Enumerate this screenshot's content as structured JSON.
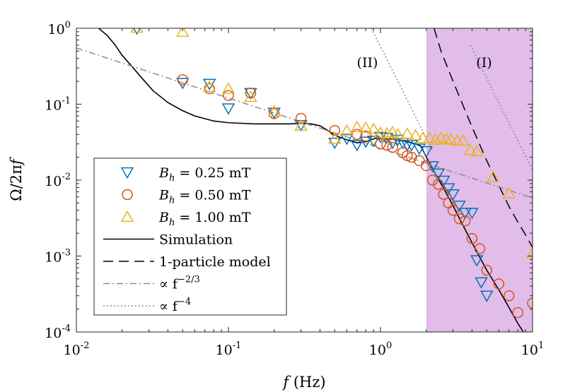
{
  "chart_data": {
    "type": "scatter",
    "xscale": "log",
    "yscale": "log",
    "xlim": [
      0.01,
      10
    ],
    "ylim": [
      0.0001,
      1
    ],
    "xlabel": "f (Hz)",
    "ylabel": "Ω/2πf",
    "x_ticks": [
      {
        "value": 0.01,
        "base": "10",
        "exp": "-2"
      },
      {
        "value": 0.1,
        "base": "10",
        "exp": "-1"
      },
      {
        "value": 1,
        "base": "10",
        "exp": "0"
      },
      {
        "value": 10,
        "base": "10",
        "exp": "1"
      }
    ],
    "y_ticks": [
      {
        "value": 1,
        "base": "10",
        "exp": "0"
      },
      {
        "value": 0.1,
        "base": "10",
        "exp": "-1"
      },
      {
        "value": 0.01,
        "base": "10",
        "exp": "-2"
      },
      {
        "value": 0.001,
        "base": "10",
        "exp": "-3"
      },
      {
        "value": 0.0001,
        "base": "10",
        "exp": "-4"
      }
    ],
    "shaded_region": {
      "x_from": 2,
      "x_to": 10,
      "color": "#e2bde9"
    },
    "region_labels": [
      {
        "text": "(II)",
        "x": 0.82,
        "y": 0.35
      },
      {
        "text": "(I)",
        "x": 4.8,
        "y": 0.35
      }
    ],
    "series": [
      {
        "name": "B_h = 0.25 mT",
        "label_main": "B",
        "label_sub": "h",
        "label_rest": " = 0.25 mT",
        "marker": "triangle-down",
        "color": "#0072bd",
        "points": [
          [
            0.025,
            0.99
          ],
          [
            0.05,
            0.19
          ],
          [
            0.075,
            0.185
          ],
          [
            0.1,
            0.088
          ],
          [
            0.14,
            0.14
          ],
          [
            0.2,
            0.077
          ],
          [
            0.3,
            0.053
          ],
          [
            0.5,
            0.031
          ],
          [
            0.6,
            0.035
          ],
          [
            0.7,
            0.029
          ],
          [
            0.8,
            0.032
          ],
          [
            0.9,
            0.033
          ],
          [
            1.0,
            0.037
          ],
          [
            1.1,
            0.036
          ],
          [
            1.2,
            0.031
          ],
          [
            1.3,
            0.034
          ],
          [
            1.4,
            0.031
          ],
          [
            1.5,
            0.029
          ],
          [
            1.6,
            0.029
          ],
          [
            1.8,
            0.026
          ],
          [
            2.0,
            0.024
          ],
          [
            2.2,
            0.0152
          ],
          [
            2.4,
            0.0122
          ],
          [
            2.6,
            0.0098
          ],
          [
            2.8,
            0.0078
          ],
          [
            3.0,
            0.0065
          ],
          [
            3.3,
            0.0046
          ],
          [
            3.6,
            0.0037
          ],
          [
            4.0,
            0.0037
          ],
          [
            4.3,
            0.00088
          ],
          [
            4.6,
            0.00045
          ],
          [
            5.0,
            0.0003
          ]
        ]
      },
      {
        "name": "B_h = 0.50 mT",
        "label_main": "B",
        "label_sub": "h",
        "label_rest": " = 0.50 mT",
        "marker": "circle",
        "color": "#d95319",
        "points": [
          [
            0.05,
            0.21
          ],
          [
            0.075,
            0.16
          ],
          [
            0.1,
            0.13
          ],
          [
            0.14,
            0.14
          ],
          [
            0.2,
            0.075
          ],
          [
            0.3,
            0.065
          ],
          [
            0.5,
            0.045
          ],
          [
            0.7,
            0.04
          ],
          [
            0.8,
            0.038
          ],
          [
            1.0,
            0.03
          ],
          [
            1.1,
            0.029
          ],
          [
            1.2,
            0.027
          ],
          [
            1.4,
            0.023
          ],
          [
            1.5,
            0.021
          ],
          [
            1.6,
            0.02
          ],
          [
            1.8,
            0.018
          ],
          [
            2.0,
            0.0155
          ],
          [
            2.2,
            0.01
          ],
          [
            2.4,
            0.0088
          ],
          [
            2.6,
            0.0065
          ],
          [
            2.8,
            0.005
          ],
          [
            3.0,
            0.004
          ],
          [
            3.3,
            0.0031
          ],
          [
            3.6,
            0.0029
          ],
          [
            4.0,
            0.0017
          ],
          [
            4.5,
            0.00125
          ],
          [
            5.0,
            0.00065
          ],
          [
            6.0,
            0.00043
          ],
          [
            7.0,
            0.0003
          ],
          [
            8.0,
            0.00018
          ],
          [
            10.0,
            0.00024
          ]
        ]
      },
      {
        "name": "B_h = 1.00 mT",
        "label_main": "B",
        "label_sub": "h",
        "label_rest": " = 1.00 mT",
        "marker": "triangle-up",
        "color": "#edb120",
        "points": [
          [
            0.025,
            1.02
          ],
          [
            0.05,
            0.9
          ],
          [
            0.075,
            0.17
          ],
          [
            0.1,
            0.16
          ],
          [
            0.14,
            0.125
          ],
          [
            0.2,
            0.08
          ],
          [
            0.3,
            0.052
          ],
          [
            0.5,
            0.035
          ],
          [
            0.6,
            0.045
          ],
          [
            0.7,
            0.05
          ],
          [
            0.8,
            0.049
          ],
          [
            0.9,
            0.047
          ],
          [
            1.0,
            0.042
          ],
          [
            1.1,
            0.041
          ],
          [
            1.2,
            0.043
          ],
          [
            1.3,
            0.04
          ],
          [
            1.5,
            0.041
          ],
          [
            1.7,
            0.039
          ],
          [
            1.9,
            0.036
          ],
          [
            2.1,
            0.036
          ],
          [
            2.3,
            0.034
          ],
          [
            2.5,
            0.036
          ],
          [
            2.7,
            0.035
          ],
          [
            2.9,
            0.034
          ],
          [
            3.2,
            0.033
          ],
          [
            3.5,
            0.033
          ],
          [
            3.9,
            0.025
          ],
          [
            4.3,
            0.024
          ],
          [
            5.5,
            0.011
          ],
          [
            7.0,
            0.0067
          ],
          [
            10.0,
            0.0011
          ]
        ]
      }
    ],
    "lines": [
      {
        "name": "Simulation",
        "style": "solid",
        "color": "#000000",
        "points": [
          [
            0.014,
            1.0
          ],
          [
            0.016,
            0.8
          ],
          [
            0.018,
            0.6
          ],
          [
            0.02,
            0.44
          ],
          [
            0.023,
            0.32
          ],
          [
            0.027,
            0.22
          ],
          [
            0.032,
            0.15
          ],
          [
            0.04,
            0.105
          ],
          [
            0.05,
            0.082
          ],
          [
            0.06,
            0.07
          ],
          [
            0.08,
            0.06
          ],
          [
            0.1,
            0.057
          ],
          [
            0.15,
            0.055
          ],
          [
            0.2,
            0.055
          ],
          [
            0.25,
            0.055
          ],
          [
            0.3,
            0.056
          ],
          [
            0.35,
            0.055
          ],
          [
            0.4,
            0.052
          ],
          [
            0.45,
            0.045
          ],
          [
            0.5,
            0.039
          ],
          [
            0.6,
            0.034
          ],
          [
            0.7,
            0.031
          ],
          [
            0.8,
            0.032
          ],
          [
            0.9,
            0.035
          ],
          [
            1.0,
            0.036
          ],
          [
            1.1,
            0.035
          ],
          [
            1.3,
            0.034
          ],
          [
            1.5,
            0.032
          ],
          [
            1.7,
            0.03
          ],
          [
            1.85,
            0.028
          ],
          [
            2.0,
            0.02
          ],
          [
            2.1,
            0.017
          ],
          [
            2.3,
            0.012
          ],
          [
            2.6,
            0.0078
          ],
          [
            3.0,
            0.0046
          ],
          [
            3.5,
            0.0025
          ],
          [
            4.0,
            0.0015
          ],
          [
            5.0,
            0.00065
          ],
          [
            6.0,
            0.00036
          ],
          [
            7.0,
            0.00021
          ],
          [
            8.0,
            0.00013
          ],
          [
            8.7,
            0.0001
          ]
        ]
      },
      {
        "name": "1-particle model",
        "style": "dashed",
        "color": "#000000",
        "points": [
          [
            2.25,
            1.0
          ],
          [
            2.5,
            0.5
          ],
          [
            3.0,
            0.2
          ],
          [
            3.5,
            0.095
          ],
          [
            4.0,
            0.05
          ],
          [
            5.0,
            0.018
          ],
          [
            6.0,
            0.0085
          ],
          [
            7.0,
            0.0045
          ],
          [
            8.0,
            0.0028
          ],
          [
            9.0,
            0.0019
          ],
          [
            10.0,
            0.0013
          ]
        ]
      },
      {
        "name": "∝ f^{-2/3}",
        "label_main": "∝ f",
        "label_sup": "−2/3",
        "style": "dashdot",
        "color": "#8c8c8c",
        "points": [
          [
            0.01,
            0.55
          ],
          [
            10.0,
            0.0058
          ]
        ]
      },
      {
        "name": "∝ f^{-4}",
        "label_main": "∝ f",
        "label_sup": "−4",
        "style": "dotted",
        "color": "#8c8c8c",
        "points": [
          [
            0.87,
            1.0
          ],
          [
            2.2,
            0.0245
          ]
        ],
        "points_2": [
          [
            3.9,
            0.6
          ],
          [
            10.0,
            0.0135
          ]
        ]
      }
    ]
  }
}
